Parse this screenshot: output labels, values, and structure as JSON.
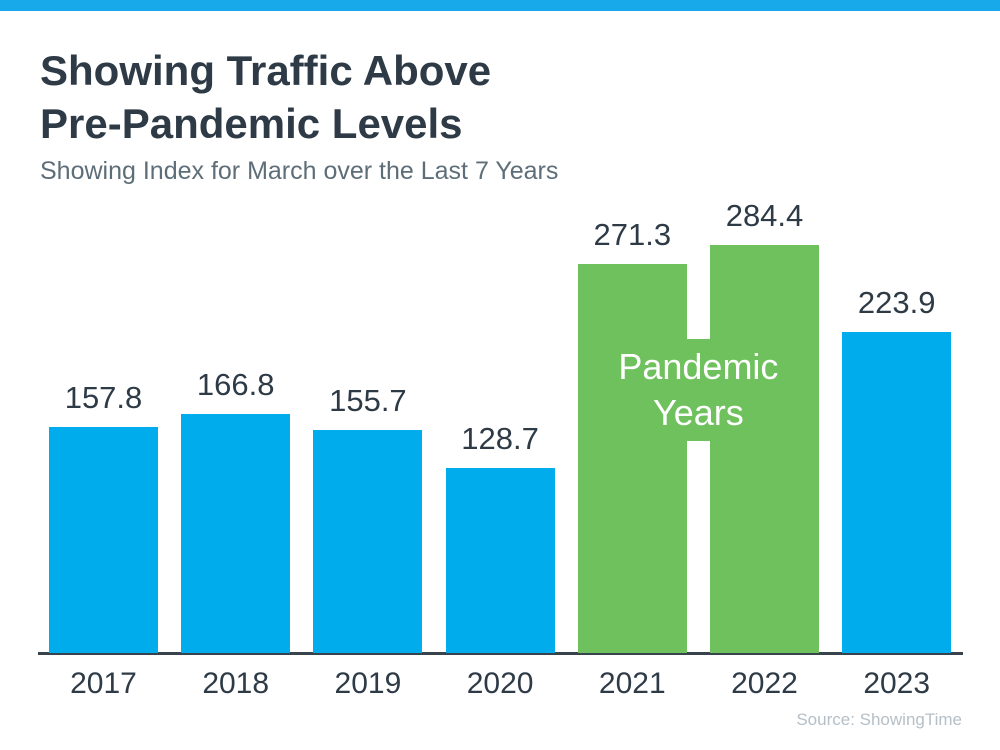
{
  "page": {
    "accent_bar_color": "#17A9EA",
    "background_color": "#FFFFFF"
  },
  "header": {
    "title_line1": "Showing Traffic Above",
    "title_line2": "Pre-Pandemic Levels",
    "subtitle": "Showing Index for March over the Last 7 Years",
    "title_color": "#2E3B47",
    "subtitle_color": "#5E6E78"
  },
  "chart_data": {
    "type": "bar",
    "title": "Showing Traffic Above Pre-Pandemic Levels",
    "subtitle": "Showing Index for March over the Last 7 Years",
    "categories": [
      "2017",
      "2018",
      "2019",
      "2020",
      "2021",
      "2022",
      "2023"
    ],
    "values": [
      157.8,
      166.8,
      155.7,
      128.7,
      271.3,
      284.4,
      223.9
    ],
    "bar_colors": [
      "#00ACEC",
      "#00ACEC",
      "#00ACEC",
      "#00ACEC",
      "#6FC15E",
      "#6FC15E",
      "#00ACEC"
    ],
    "blue_color": "#00ACEC",
    "green_color": "#6FC15E",
    "value_label_color": "#2E3B47",
    "x_tick_label_color": "#2E3B47",
    "axis_color": "#39434C",
    "annotation": {
      "label": "Pandemic Years",
      "applies_to": [
        "2021",
        "2022"
      ],
      "text_color": "#FFFFFF"
    },
    "xlabel": "",
    "ylabel": "",
    "ylim": [
      0,
      300
    ],
    "grid": false,
    "legend": false,
    "value_labels_shown": true
  },
  "footer": {
    "source": "Source: ShowingTime",
    "color": "#B5BFC7"
  }
}
